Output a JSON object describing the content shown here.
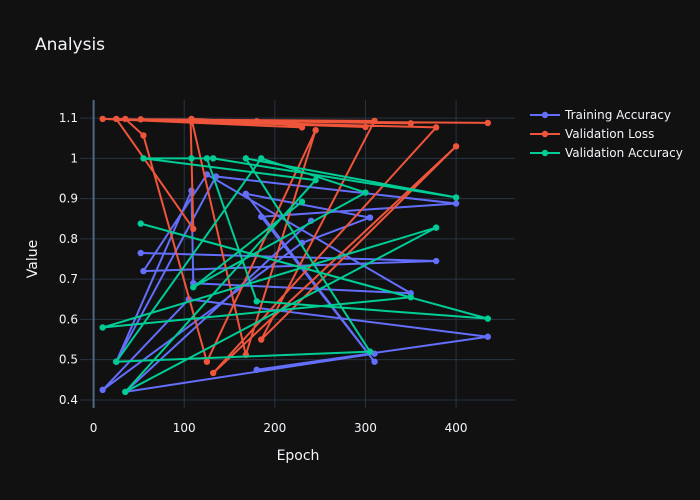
{
  "chart_data": {
    "type": "line",
    "title": "Analysis",
    "xlabel": "Epoch",
    "ylabel": "Value",
    "xlim": [
      -15,
      465
    ],
    "ylim": [
      0.38,
      1.145
    ],
    "xticks": [
      0,
      100,
      200,
      300,
      400
    ],
    "yticks": [
      0.4,
      0.5,
      0.6,
      0.7,
      0.8,
      0.9,
      1.0,
      1.1
    ],
    "ytick_labels": [
      "0.4",
      "0.5",
      "0.6",
      "0.7",
      "0.8",
      "0.9",
      "1",
      "1.1"
    ],
    "grid": true,
    "legend_position": "top-right",
    "series": [
      {
        "name": "Training Accuracy",
        "color": "#636efa",
        "points": [
          [
            52,
            0.765
          ],
          [
            378,
            0.745
          ],
          [
            55,
            0.72
          ],
          [
            125,
            0.96
          ],
          [
            350,
            0.665
          ],
          [
            110,
            0.69
          ],
          [
            108,
            0.92
          ],
          [
            25,
            0.495
          ],
          [
            135,
            0.955
          ],
          [
            400,
            0.888
          ],
          [
            185,
            0.855
          ],
          [
            310,
            0.495
          ],
          [
            168,
            0.912
          ],
          [
            305,
            0.853
          ],
          [
            230,
            0.79
          ],
          [
            10,
            0.425
          ],
          [
            105,
            0.65
          ],
          [
            435,
            0.557
          ],
          [
            180,
            0.475
          ],
          [
            310,
            0.515
          ],
          [
            35,
            0.42
          ],
          [
            240,
            0.845
          ]
        ]
      },
      {
        "name": "Validation Loss",
        "color": "#ef553b",
        "points": [
          [
            35,
            1.098
          ],
          [
            55,
            1.057
          ],
          [
            125,
            0.495
          ],
          [
            245,
            1.07
          ],
          [
            168,
            0.512
          ],
          [
            108,
            1.098
          ],
          [
            300,
            1.078
          ],
          [
            25,
            1.098
          ],
          [
            110,
            0.825
          ],
          [
            107,
            1.093
          ],
          [
            435,
            1.088
          ],
          [
            180,
            1.092
          ],
          [
            230,
            1.077
          ],
          [
            10,
            1.098
          ],
          [
            378,
            1.077
          ],
          [
            132,
            0.467
          ],
          [
            400,
            1.03
          ],
          [
            185,
            0.55
          ],
          [
            310,
            1.093
          ],
          [
            52,
            1.097
          ],
          [
            350,
            1.087
          ]
        ]
      },
      {
        "name": "Validation Accuracy",
        "color": "#00cc96",
        "points": [
          [
            125,
            1.0
          ],
          [
            180,
            0.645
          ],
          [
            435,
            0.602
          ],
          [
            52,
            0.838
          ],
          [
            350,
            0.655
          ],
          [
            10,
            0.58
          ],
          [
            378,
            0.828
          ],
          [
            35,
            0.42
          ],
          [
            245,
            0.946
          ],
          [
            55,
            1.0
          ],
          [
            108,
            1.0
          ],
          [
            132,
            1.0
          ],
          [
            400,
            0.903
          ],
          [
            168,
            1.0
          ],
          [
            305,
            0.52
          ],
          [
            25,
            0.495
          ],
          [
            185,
            1.0
          ],
          [
            300,
            0.915
          ],
          [
            110,
            0.68
          ],
          [
            230,
            0.892
          ]
        ]
      }
    ]
  }
}
